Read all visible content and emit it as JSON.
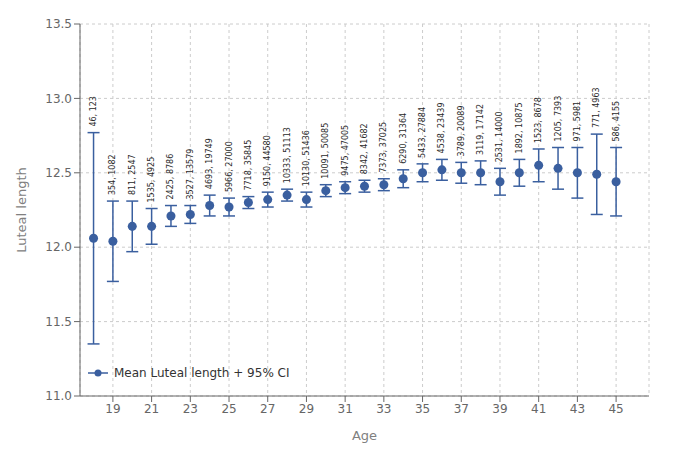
{
  "chart_data": {
    "type": "scatter",
    "xlabel": "Age",
    "ylabel": "Luteal length",
    "x": [
      18,
      19,
      20,
      21,
      22,
      23,
      24,
      25,
      26,
      27,
      28,
      29,
      30,
      31,
      32,
      33,
      34,
      35,
      36,
      37,
      38,
      39,
      40,
      41,
      42,
      43,
      44,
      45
    ],
    "series": [
      {
        "name": "Mean Luteal length + 95% CI",
        "color": "#3a5f9f",
        "values": [
          12.06,
          12.04,
          12.14,
          12.14,
          12.21,
          12.22,
          12.28,
          12.27,
          12.3,
          12.32,
          12.35,
          12.32,
          12.38,
          12.4,
          12.41,
          12.42,
          12.46,
          12.5,
          12.52,
          12.5,
          12.5,
          12.44,
          12.5,
          12.55,
          12.53,
          12.5,
          12.49,
          12.44
        ],
        "ci_lower": [
          11.35,
          11.77,
          11.97,
          12.02,
          12.14,
          12.16,
          12.21,
          12.21,
          12.26,
          12.27,
          12.31,
          12.27,
          12.34,
          12.36,
          12.37,
          12.38,
          12.4,
          12.44,
          12.45,
          12.43,
          12.42,
          12.35,
          12.41,
          12.44,
          12.39,
          12.33,
          12.22,
          12.21
        ],
        "ci_upper": [
          12.77,
          12.31,
          12.31,
          12.26,
          12.28,
          12.28,
          12.35,
          12.33,
          12.34,
          12.37,
          12.39,
          12.37,
          12.42,
          12.44,
          12.45,
          12.46,
          12.52,
          12.56,
          12.59,
          12.57,
          12.58,
          12.53,
          12.59,
          12.66,
          12.67,
          12.67,
          12.76,
          12.67
        ],
        "annotations": [
          "46, 123",
          "354, 1082",
          "811, 2547",
          "1535, 4925",
          "2425, 8786",
          "3527, 13579",
          "4693, 19749",
          "5966, 27000",
          "7718, 35845",
          "9150, 44580",
          "10333, 51113",
          "10130, 51436",
          "10091, 50085",
          "9475, 47005",
          "8342, 41682",
          "7373, 37025",
          "6290, 31364",
          "5433, 27884",
          "4538, 23439",
          "3789, 20089",
          "3119, 17142",
          "2531, 14000",
          "1892, 10875",
          "1523, 8678",
          "1205, 7393",
          "971, 5981",
          "771, 4963",
          "586, 4155"
        ]
      }
    ],
    "xlim": [
      17.3,
      46.7
    ],
    "ylim": [
      11.0,
      13.5
    ],
    "xticks": [
      19,
      21,
      23,
      25,
      27,
      29,
      31,
      33,
      35,
      37,
      39,
      41,
      43,
      45
    ],
    "yticks": [
      {
        "value": 11.0,
        "label": "11.0"
      },
      11.5,
      {
        "value": 12.0,
        "label": "12.0"
      },
      12.5,
      {
        "value": 13.0,
        "label": "13.0"
      },
      13.5
    ],
    "grid": true,
    "legend": "lower left"
  }
}
